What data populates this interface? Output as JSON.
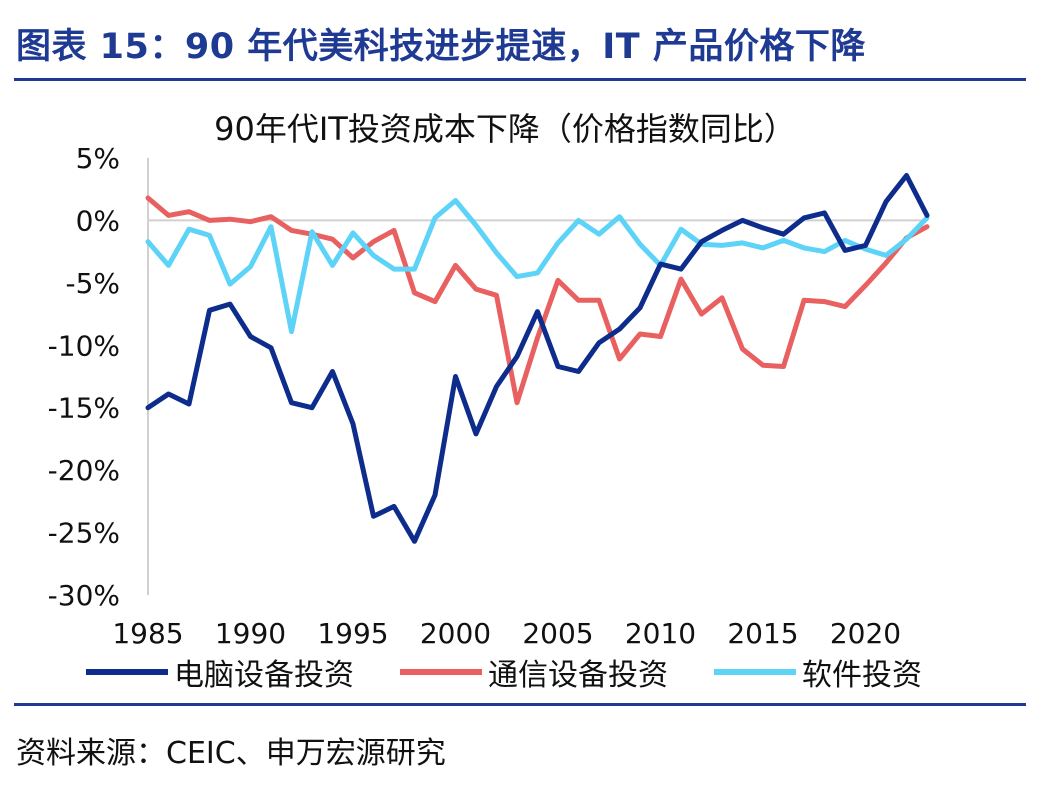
{
  "figure_title": "图表 15：90 年代美科技进步提速，IT 产品价格下降",
  "source": "资料来源：CEIC、申万宏源研究",
  "chart_data": {
    "type": "line",
    "title": "90年代IT投资成本下降（价格指数同比）",
    "xlabel": "",
    "ylabel": "",
    "ylim": [
      -30,
      5
    ],
    "xlim": [
      1985,
      2023
    ],
    "y_ticks": [
      "5%",
      "0%",
      "-5%",
      "-10%",
      "-15%",
      "-20%",
      "-25%",
      "-30%"
    ],
    "y_tick_values": [
      5,
      0,
      -5,
      -10,
      -15,
      -20,
      -25,
      -30
    ],
    "x_ticks": [
      "1985",
      "1990",
      "1995",
      "2000",
      "2005",
      "2010",
      "2015",
      "2020"
    ],
    "x_tick_values": [
      1985,
      1990,
      1995,
      2000,
      2005,
      2010,
      2015,
      2020
    ],
    "grid": false,
    "legend_position": "bottom",
    "x": [
      1985,
      1986,
      1987,
      1988,
      1989,
      1990,
      1991,
      1992,
      1993,
      1994,
      1995,
      1996,
      1997,
      1998,
      1999,
      2000,
      2001,
      2002,
      2003,
      2004,
      2005,
      2006,
      2007,
      2008,
      2009,
      2010,
      2011,
      2012,
      2013,
      2014,
      2015,
      2016,
      2017,
      2018,
      2019,
      2020,
      2021,
      2022,
      2023
    ],
    "series": [
      {
        "name": "电脑设备投资",
        "color": "#0d2c8c",
        "values": [
          -15.0,
          -13.9,
          -14.7,
          -7.2,
          -6.7,
          -9.3,
          -10.2,
          -14.6,
          -15.0,
          -12.1,
          -16.3,
          -23.7,
          -22.9,
          -25.7,
          -22.0,
          -12.5,
          -17.1,
          -13.3,
          -10.9,
          -7.3,
          -11.7,
          -12.1,
          -9.8,
          -8.7,
          -7.0,
          -3.5,
          -3.9,
          -1.7,
          -0.8,
          0.0,
          -0.6,
          -1.1,
          0.2,
          0.6,
          -2.4,
          -2.0,
          1.5,
          3.6,
          0.4
        ]
      },
      {
        "name": "通信设备投资",
        "color": "#e8605f",
        "values": [
          1.8,
          0.4,
          0.7,
          0.0,
          0.1,
          -0.1,
          0.3,
          -0.8,
          -1.1,
          -1.5,
          -3.0,
          -1.7,
          -0.8,
          -5.8,
          -6.5,
          -3.6,
          -5.5,
          -6.0,
          -14.6,
          -9.4,
          -4.8,
          -6.4,
          -6.4,
          -11.1,
          -9.1,
          -9.3,
          -4.7,
          -7.5,
          -6.2,
          -10.3,
          -11.6,
          -11.7,
          -6.4,
          -6.5,
          -6.9,
          -5.2,
          -3.4,
          -1.4,
          -0.5
        ]
      },
      {
        "name": "软件投资",
        "color": "#5dd3f7",
        "values": [
          -1.7,
          -3.6,
          -0.7,
          -1.2,
          -5.1,
          -3.7,
          -0.5,
          -8.9,
          -0.9,
          -3.6,
          -1.0,
          -2.8,
          -3.9,
          -3.9,
          0.2,
          1.6,
          -0.4,
          -2.6,
          -4.5,
          -4.2,
          -1.8,
          0.0,
          -1.1,
          0.3,
          -1.9,
          -3.6,
          -0.7,
          -1.9,
          -2.0,
          -1.8,
          -2.2,
          -1.6,
          -2.2,
          -2.5,
          -1.6,
          -2.3,
          -2.8,
          -1.5,
          0.2
        ]
      }
    ]
  }
}
